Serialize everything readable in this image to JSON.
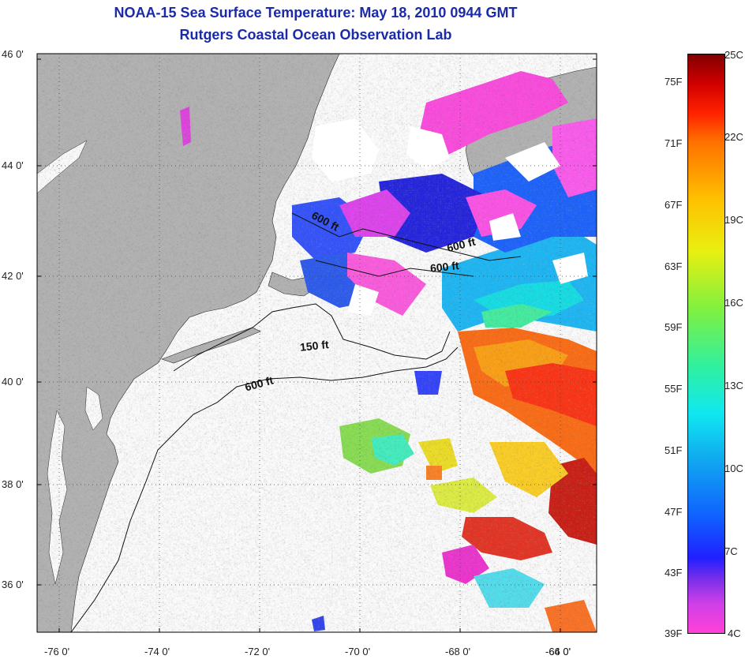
{
  "title": {
    "line1": "NOAA-15 Sea Surface Temperature:  May 18, 2010 0944 GMT",
    "line2": "Rutgers Coastal Ocean Observation Lab"
  },
  "map": {
    "lat_labels": [
      "46 0'",
      "44 0'",
      "42 0'",
      "40 0'",
      "38 0'",
      "36 0'"
    ],
    "lon_labels": [
      "-76 0'",
      "-74 0'",
      "-72 0'",
      "-70 0'",
      "-68 0'",
      "-66 0'",
      "-64 0'"
    ],
    "contour_labels": [
      "600 ft",
      "600 ft",
      "600 ft",
      "150 ft",
      "600 ft"
    ],
    "colors": {
      "land": "#b3b3b3",
      "water_cloud": "#ffffff",
      "title": "#1a2aa8"
    }
  },
  "colorbar": {
    "fahrenheit": [
      "75F",
      "71F",
      "67F",
      "63F",
      "59F",
      "55F",
      "51F",
      "47F",
      "43F",
      "39F"
    ],
    "celsius": [
      "25C",
      "22C",
      "19C",
      "16C",
      "13C",
      "10C",
      "7C",
      "4C"
    ]
  }
}
